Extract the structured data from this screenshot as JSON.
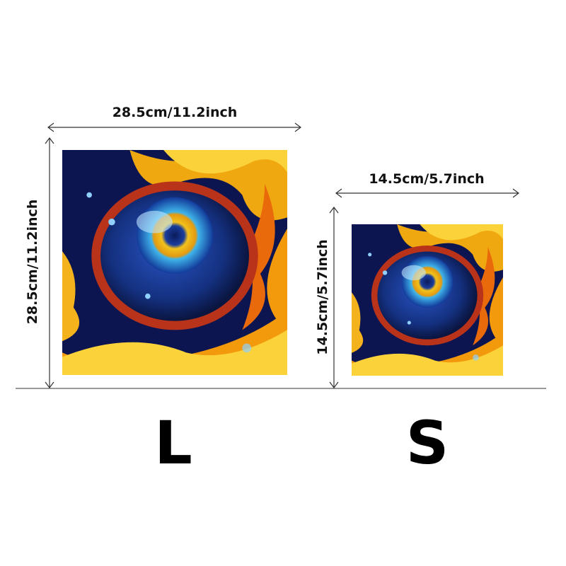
{
  "sizes": [
    {
      "label": "L",
      "width": "28.5cm/11.2inch",
      "height": "28.5cm/11.2inch"
    },
    {
      "label": "S",
      "width": "14.5cm/5.7inch",
      "height": "14.5cm/5.7inch"
    }
  ]
}
